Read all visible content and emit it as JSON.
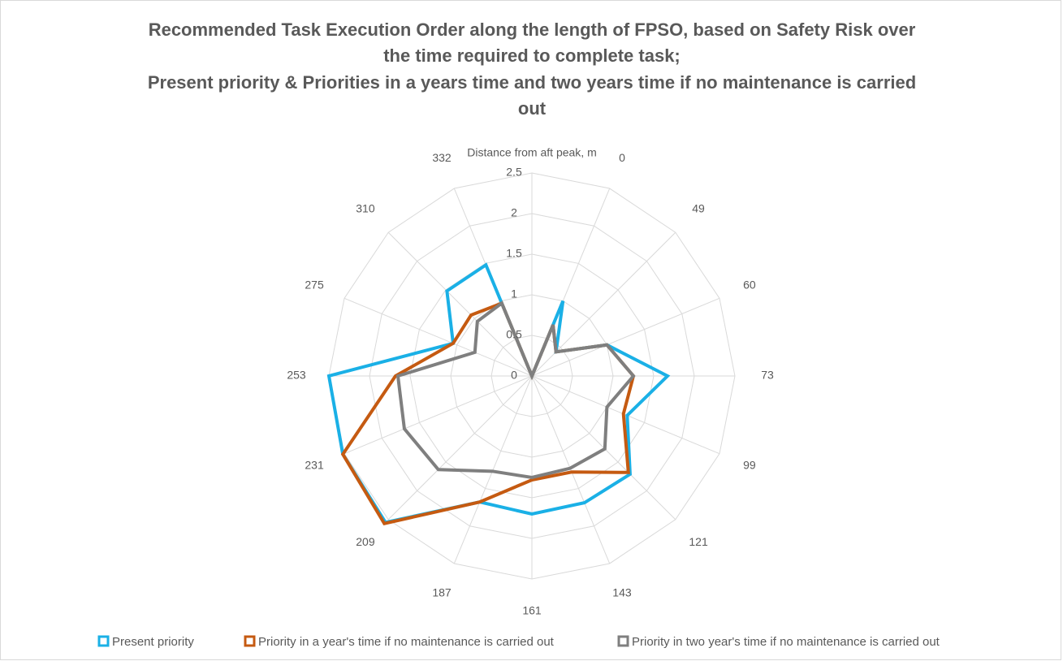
{
  "chart_data": {
    "type": "radar",
    "title": [
      "Recommended Task Execution Order along the length of FPSO, based on Safety Risk over",
      "the time required to complete task;",
      "Present priority & Priorities in a years time and two years time if no maintenance is carried",
      "out"
    ],
    "categories": [
      "Distance from aft peak, m",
      "0",
      "49",
      "60",
      "73",
      "99",
      "121",
      "143",
      "161",
      "187",
      "209",
      "231",
      "253",
      "275",
      "310",
      "332"
    ],
    "series": [
      {
        "name": "Present priority",
        "color": "#1ab0e6",
        "values": [
          0,
          1.0,
          0.42,
          1.0,
          1.67,
          1.27,
          1.71,
          1.69,
          1.7,
          1.68,
          2.55,
          2.52,
          2.5,
          1.05,
          1.48,
          1.48
        ]
      },
      {
        "name": "Priority in a year's time if no maintenance is carried out",
        "color": "#c55a11",
        "values": [
          0,
          0.68,
          0.42,
          1.0,
          1.25,
          1.22,
          1.68,
          1.28,
          1.28,
          1.68,
          2.57,
          2.52,
          1.68,
          1.05,
          1.06,
          0.97
        ]
      },
      {
        "name": "Priority in two year's time if no maintenance is carried out",
        "color": "#7f7f7f",
        "values": [
          0,
          0.68,
          0.42,
          1.0,
          1.25,
          1.0,
          1.27,
          1.23,
          1.25,
          1.27,
          1.63,
          1.7,
          1.65,
          0.76,
          0.95,
          0.97
        ]
      }
    ],
    "ylim": [
      0,
      2.5
    ],
    "yticks": [
      0,
      0.5,
      1,
      1.5,
      2,
      2.5
    ],
    "grid": true,
    "legend": "bottom"
  }
}
